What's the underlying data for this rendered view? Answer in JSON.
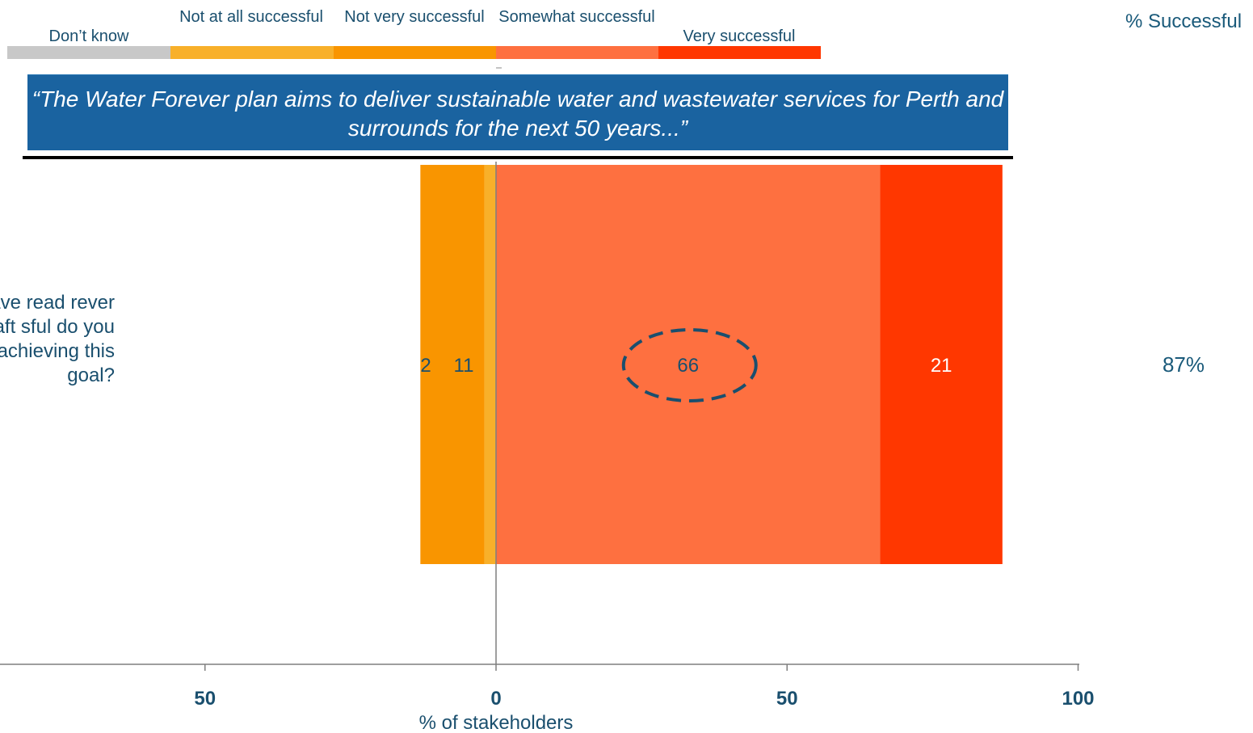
{
  "legend": {
    "items": [
      {
        "label": "Don’t know",
        "color": "#c8c8c8"
      },
      {
        "label": "Not at all successful",
        "color": "#f8b02a"
      },
      {
        "label": "Not very successful",
        "color": "#f99500"
      },
      {
        "label": "Somewhat successful",
        "color": "#fe7040"
      },
      {
        "label": "Very successful",
        "color": "#ff3700"
      }
    ]
  },
  "summary_header": "% Successful",
  "quote": "“The Water Forever plan aims to deliver sustainable water and wastewater services for Perth and surrounds for the next 50 years...”",
  "question": "have read rever draft sful do you achieving this goal?",
  "summary_value": "87%",
  "chart_data": {
    "type": "bar",
    "orientation": "horizontal",
    "diverging": true,
    "xlabel": "% of stakeholders",
    "xlim": [
      -100,
      100
    ],
    "xticks": [
      -50,
      0,
      50,
      100
    ],
    "xtick_labels": [
      "50",
      "0",
      "50",
      "100"
    ],
    "categories": [
      "question"
    ],
    "series": [
      {
        "name": "Not at all successful",
        "values": [
          -2
        ],
        "label": "2",
        "color": "#f8b02a"
      },
      {
        "name": "Not very successful",
        "values": [
          -11
        ],
        "label": "11",
        "color": "#f99500"
      },
      {
        "name": "Somewhat successful",
        "values": [
          66
        ],
        "label": "66",
        "color": "#fe7040",
        "highlighted": true
      },
      {
        "name": "Very successful",
        "values": [
          21
        ],
        "label": "21",
        "color": "#ff3700"
      }
    ]
  }
}
